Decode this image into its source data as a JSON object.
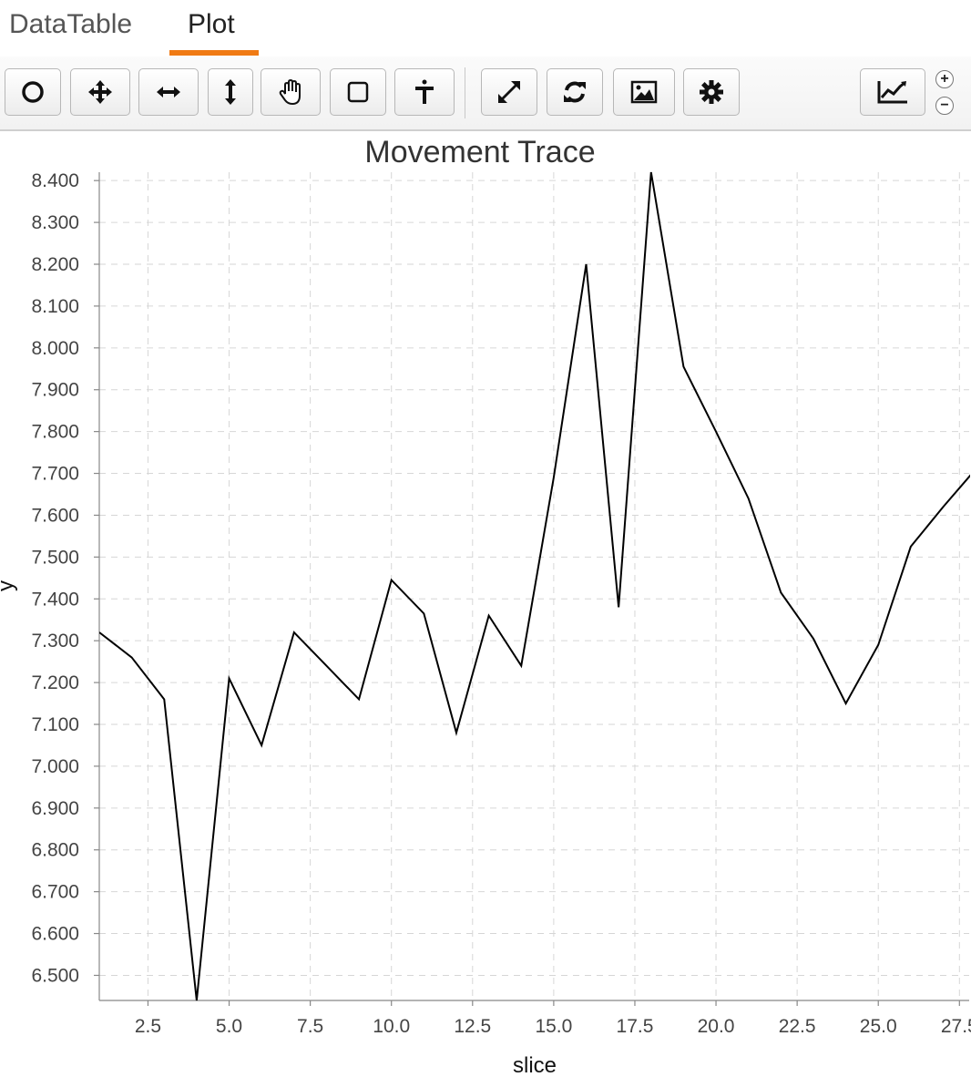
{
  "tabs": [
    {
      "label": "DataTable",
      "active": false
    },
    {
      "label": "Plot",
      "active": true
    }
  ],
  "accent_color": "#f07a13",
  "toolbar": {
    "buttons": [
      {
        "icon": "circle-select-icon"
      },
      {
        "icon": "move-icon"
      },
      {
        "icon": "pan-horizontal-icon"
      },
      {
        "icon": "pan-vertical-icon"
      },
      {
        "icon": "hand-drag-icon"
      },
      {
        "icon": "rectangle-select-icon"
      },
      {
        "icon": "marker-icon"
      },
      {
        "icon": "expand-icon"
      },
      {
        "icon": "refresh-icon"
      },
      {
        "icon": "image-export-icon"
      },
      {
        "icon": "settings-gear-icon"
      },
      {
        "icon": "line-chart-icon"
      }
    ],
    "zoom_in": "+",
    "zoom_out": "−"
  },
  "chart_data": {
    "type": "line",
    "title": "Movement Trace",
    "xlabel": "slice",
    "ylabel": "y",
    "xlim": [
      1,
      27.8
    ],
    "ylim": [
      6.44,
      8.42
    ],
    "grid": true,
    "x_ticks": [
      2.5,
      5.0,
      7.5,
      10.0,
      12.5,
      15.0,
      17.5,
      20.0,
      22.5,
      25.0,
      27.5
    ],
    "y_ticks": [
      6.5,
      6.6,
      6.7,
      6.8,
      6.9,
      7.0,
      7.1,
      7.2,
      7.3,
      7.4,
      7.5,
      7.6,
      7.7,
      7.8,
      7.9,
      8.0,
      8.1,
      8.2,
      8.3,
      8.4
    ],
    "x_tick_labels": [
      "2.5",
      "5.0",
      "7.5",
      "10.0",
      "12.5",
      "15.0",
      "17.5",
      "20.0",
      "22.5",
      "25.0",
      "27.5"
    ],
    "y_tick_labels": [
      "6.500",
      "6.600",
      "6.700",
      "6.800",
      "6.900",
      "7.000",
      "7.100",
      "7.200",
      "7.300",
      "7.400",
      "7.500",
      "7.600",
      "7.700",
      "7.800",
      "7.900",
      "8.000",
      "8.100",
      "8.200",
      "8.300",
      "8.400"
    ],
    "series": [
      {
        "color": "#000000",
        "x": [
          1,
          2,
          3,
          4,
          5,
          6,
          7,
          8,
          9,
          10,
          11,
          12,
          13,
          14,
          15,
          16,
          17,
          18,
          19,
          20,
          21,
          22,
          23,
          24,
          25,
          26,
          27,
          28
        ],
        "y": [
          7.32,
          7.26,
          7.16,
          6.44,
          7.21,
          7.05,
          7.32,
          7.24,
          7.16,
          7.445,
          7.365,
          7.08,
          7.36,
          7.24,
          7.69,
          8.2,
          7.38,
          8.42,
          7.955,
          7.8,
          7.64,
          7.415,
          7.305,
          7.15,
          7.29,
          7.525,
          7.62,
          7.71
        ]
      }
    ]
  }
}
